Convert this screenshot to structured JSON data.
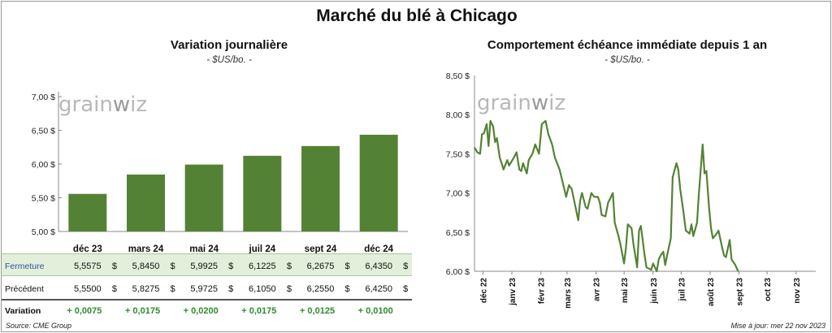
{
  "title": "Marché du blé à Chicago",
  "watermark": "grainwiz",
  "footer": {
    "source": "Source: CME Group",
    "updated": "Mise à jour: mer 22 nov 2023"
  },
  "colors": {
    "series": "#548235",
    "row_highlight": "#e2efda",
    "up_text": "#2e8b2e"
  },
  "chart_data": [
    {
      "type": "bar",
      "title": "Variation  journalière",
      "subtitle": "- $US/bo. -",
      "categories": [
        "déc 23",
        "mars 24",
        "mai 24",
        "juil 24",
        "sept 24",
        "déc 24"
      ],
      "values": [
        5.5575,
        5.845,
        5.9925,
        6.1225,
        6.2675,
        6.435
      ],
      "ylim": [
        5.0,
        7.0
      ],
      "yticks": [
        5.0,
        5.5,
        6.0,
        6.5,
        7.0
      ],
      "ytick_labels": [
        "5,00 $",
        "5,50 $",
        "6,00 $",
        "6,50 $",
        "7,00 $"
      ],
      "table": {
        "rows": [
          {
            "label": "Fermeture",
            "values": [
              "5,5575",
              "5,8450",
              "5,9925",
              "6,1225",
              "6,2675",
              "6,4350"
            ],
            "unit": "$"
          },
          {
            "label": "Précédent",
            "values": [
              "5,5500",
              "5,8275",
              "5,9725",
              "6,1050",
              "6,2550",
              "6,4250"
            ],
            "unit": "$"
          },
          {
            "label": "Variation",
            "values": [
              "+ 0,0075",
              "+ 0,0175",
              "+ 0,0200",
              "+ 0,0175",
              "+ 0,0125",
              "+ 0,0100"
            ],
            "unit": ""
          }
        ]
      }
    },
    {
      "type": "line",
      "title": "Comportement  échéance immédiate depuis 1 an",
      "subtitle": "- $US/bo. -",
      "ylim": [
        6.0,
        8.5
      ],
      "yticks": [
        6.0,
        6.5,
        7.0,
        7.5,
        8.0,
        8.5
      ],
      "ytick_labels": [
        "6,00 $",
        "6,50 $",
        "7,00 $",
        "7,50 $",
        "8,00 $",
        "8,50 $"
      ],
      "xlim": [
        "2022-11-22",
        "2023-11-22"
      ],
      "xticks": [
        "2022-12-01",
        "2023-01-01",
        "2023-02-01",
        "2023-03-01",
        "2023-04-01",
        "2023-05-01",
        "2023-06-01",
        "2023-07-01",
        "2023-08-01",
        "2023-09-01",
        "2023-10-01",
        "2023-11-01"
      ],
      "xtick_labels": [
        "déc 22",
        "janv 23",
        "févr 23",
        "mars 23",
        "avr 23",
        "mai 23",
        "juin 23",
        "juil 23",
        "août 23",
        "sept 23",
        "oct 23",
        "nov 23"
      ],
      "points": [
        [
          "2022-11-22",
          7.58
        ],
        [
          "2022-11-25",
          7.52
        ],
        [
          "2022-11-28",
          7.5
        ],
        [
          "2022-11-30",
          7.75
        ],
        [
          "2022-12-02",
          7.76
        ],
        [
          "2022-12-05",
          7.88
        ],
        [
          "2022-12-07",
          7.6
        ],
        [
          "2022-12-09",
          7.92
        ],
        [
          "2022-12-12",
          7.85
        ],
        [
          "2022-12-14",
          7.65
        ],
        [
          "2022-12-16",
          7.7
        ],
        [
          "2022-12-19",
          7.45
        ],
        [
          "2022-12-21",
          7.38
        ],
        [
          "2022-12-23",
          7.3
        ],
        [
          "2022-12-27",
          7.42
        ],
        [
          "2022-12-29",
          7.35
        ],
        [
          "2023-01-03",
          7.45
        ],
        [
          "2023-01-06",
          7.52
        ],
        [
          "2023-01-09",
          7.3
        ],
        [
          "2023-01-11",
          7.28
        ],
        [
          "2023-01-13",
          7.38
        ],
        [
          "2023-01-17",
          7.25
        ],
        [
          "2023-01-19",
          7.42
        ],
        [
          "2023-01-23",
          7.5
        ],
        [
          "2023-01-26",
          7.62
        ],
        [
          "2023-01-30",
          7.5
        ],
        [
          "2023-02-02",
          7.88
        ],
        [
          "2023-02-06",
          7.92
        ],
        [
          "2023-02-09",
          7.75
        ],
        [
          "2023-02-13",
          7.62
        ],
        [
          "2023-02-16",
          7.45
        ],
        [
          "2023-02-21",
          7.3
        ],
        [
          "2023-02-24",
          7.15
        ],
        [
          "2023-02-28",
          6.95
        ],
        [
          "2023-03-03",
          7.1
        ],
        [
          "2023-03-06",
          7.05
        ],
        [
          "2023-03-09",
          6.88
        ],
        [
          "2023-03-13",
          6.65
        ],
        [
          "2023-03-15",
          6.9
        ],
        [
          "2023-03-17",
          7.0
        ],
        [
          "2023-03-21",
          6.82
        ],
        [
          "2023-03-23",
          6.8
        ],
        [
          "2023-03-27",
          7.0
        ],
        [
          "2023-03-30",
          6.95
        ],
        [
          "2023-04-03",
          6.95
        ],
        [
          "2023-04-05",
          6.88
        ],
        [
          "2023-04-07",
          6.72
        ],
        [
          "2023-04-11",
          6.7
        ],
        [
          "2023-04-14",
          6.88
        ],
        [
          "2023-04-17",
          6.95
        ],
        [
          "2023-04-19",
          7.0
        ],
        [
          "2023-04-21",
          6.62
        ],
        [
          "2023-04-25",
          6.45
        ],
        [
          "2023-04-27",
          6.35
        ],
        [
          "2023-05-01",
          6.1
        ],
        [
          "2023-05-03",
          6.3
        ],
        [
          "2023-05-05",
          6.6
        ],
        [
          "2023-05-09",
          6.55
        ],
        [
          "2023-05-11",
          6.35
        ],
        [
          "2023-05-15",
          6.05
        ],
        [
          "2023-05-17",
          6.52
        ],
        [
          "2023-05-19",
          6.58
        ],
        [
          "2023-05-23",
          6.2
        ],
        [
          "2023-05-25",
          6.05
        ],
        [
          "2023-05-30",
          6.02
        ],
        [
          "2023-06-01",
          6.1
        ],
        [
          "2023-06-05",
          6.0
        ],
        [
          "2023-06-07",
          6.15
        ],
        [
          "2023-06-09",
          6.2
        ],
        [
          "2023-06-12",
          6.25
        ],
        [
          "2023-06-14",
          6.08
        ],
        [
          "2023-06-16",
          6.2
        ],
        [
          "2023-06-20",
          6.42
        ],
        [
          "2023-06-22",
          7.2
        ],
        [
          "2023-06-26",
          7.38
        ],
        [
          "2023-06-28",
          7.3
        ],
        [
          "2023-06-30",
          7.05
        ],
        [
          "2023-07-03",
          6.8
        ],
        [
          "2023-07-06",
          6.52
        ],
        [
          "2023-07-10",
          6.48
        ],
        [
          "2023-07-12",
          6.6
        ],
        [
          "2023-07-14",
          6.45
        ],
        [
          "2023-07-18",
          6.62
        ],
        [
          "2023-07-20",
          7.0
        ],
        [
          "2023-07-24",
          7.62
        ],
        [
          "2023-07-26",
          7.25
        ],
        [
          "2023-07-28",
          7.28
        ],
        [
          "2023-07-31",
          6.8
        ],
        [
          "2023-08-02",
          6.55
        ],
        [
          "2023-08-04",
          6.42
        ],
        [
          "2023-08-08",
          6.48
        ],
        [
          "2023-08-10",
          6.52
        ],
        [
          "2023-08-14",
          6.3
        ],
        [
          "2023-08-16",
          6.2
        ],
        [
          "2023-08-18",
          6.18
        ],
        [
          "2023-08-22",
          6.4
        ],
        [
          "2023-08-24",
          6.15
        ],
        [
          "2023-08-28",
          6.08
        ],
        [
          "2023-08-31",
          6.0
        ]
      ]
    }
  ]
}
